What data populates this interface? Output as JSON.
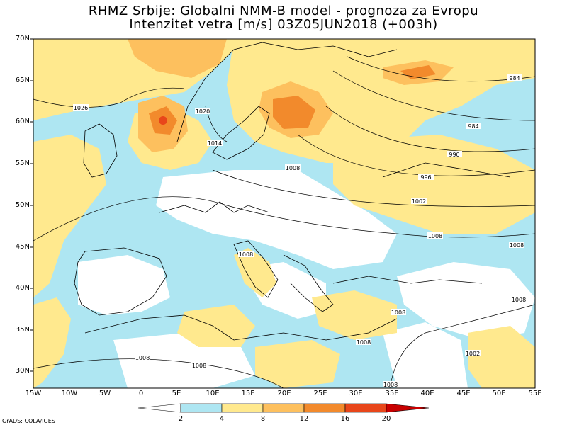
{
  "title_line1": "RHMZ Srbije: Globalni NMM-B model - prognoza za Evropu",
  "title_line2": "Intenzitet vetra [m/s] 03Z05JUN2018 (+003h)",
  "lat_labels": [
    "70N",
    "65N",
    "60N",
    "55N",
    "50N",
    "45N",
    "40N",
    "35N",
    "30N"
  ],
  "lon_labels": [
    "15W",
    "10W",
    "5W",
    "0",
    "5E",
    "10E",
    "15E",
    "20E",
    "25E",
    "30E",
    "35E",
    "40E",
    "45E",
    "50E",
    "55E"
  ],
  "isobar_labels": [
    "1026",
    "1020",
    "1014",
    "1008",
    "996",
    "990",
    "984",
    "984",
    "1002",
    "1008",
    "1008",
    "1008",
    "1008",
    "1008",
    "1008",
    "1008",
    "1002",
    "1008",
    "1008"
  ],
  "colorbar": {
    "ticks": [
      "2",
      "4",
      "8",
      "12",
      "16",
      "20"
    ],
    "colors": [
      "#ffffff",
      "#aee6f2",
      "#ffe98e",
      "#fdc05e",
      "#f28a2c",
      "#e8461a",
      "#c80000"
    ]
  },
  "credit": "GrADS: COLA/IGES",
  "colors": {
    "ocean_wind": "#aee6f2",
    "yellow": "#ffe98e",
    "orange": "#fdc05e",
    "dark_orange": "#f28a2c",
    "red": "#e8461a"
  }
}
